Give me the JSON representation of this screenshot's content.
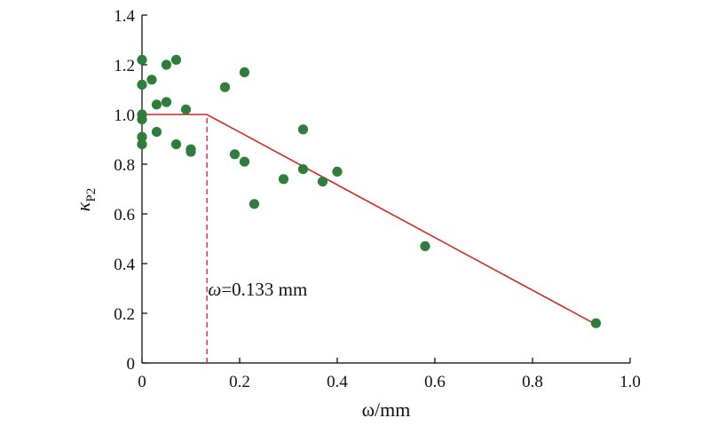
{
  "chart_data": {
    "type": "scatter",
    "title": "",
    "xlabel": "ω/mm",
    "ylabel_symbol": "κ",
    "ylabel_subscript": "P2",
    "xlim": [
      0,
      1.0
    ],
    "ylim": [
      0,
      1.4
    ],
    "x_ticks": [
      "0",
      "0.2",
      "0.4",
      "0.6",
      "0.8",
      "1.0"
    ],
    "y_ticks": [
      "0",
      "0.2",
      "0.4",
      "0.6",
      "0.8",
      "1.0",
      "1.2",
      "1.4"
    ],
    "x_tick_values": [
      0,
      0.2,
      0.4,
      0.6,
      0.8,
      1.0
    ],
    "y_tick_values": [
      0,
      0.2,
      0.4,
      0.6,
      0.8,
      1.0,
      1.2,
      1.4
    ],
    "grid": false,
    "series": [
      {
        "type": "scatter",
        "color": "#2e7d3a",
        "points": [
          [
            0,
            1.22
          ],
          [
            0,
            1.12
          ],
          [
            0,
            1.0
          ],
          [
            0,
            0.98
          ],
          [
            0,
            0.91
          ],
          [
            0,
            0.88
          ],
          [
            0.02,
            1.14
          ],
          [
            0.03,
            1.04
          ],
          [
            0.03,
            0.93
          ],
          [
            0.05,
            1.2
          ],
          [
            0.05,
            1.05
          ],
          [
            0.07,
            1.22
          ],
          [
            0.07,
            0.88
          ],
          [
            0.09,
            1.02
          ],
          [
            0.1,
            0.86
          ],
          [
            0.1,
            0.85
          ],
          [
            0.17,
            1.11
          ],
          [
            0.19,
            0.84
          ],
          [
            0.21,
            1.17
          ],
          [
            0.21,
            0.81
          ],
          [
            0.23,
            0.64
          ],
          [
            0.29,
            0.74
          ],
          [
            0.33,
            0.94
          ],
          [
            0.33,
            0.78
          ],
          [
            0.37,
            0.73
          ],
          [
            0.4,
            0.77
          ],
          [
            0.58,
            0.47
          ],
          [
            0.93,
            0.16
          ]
        ]
      },
      {
        "type": "line",
        "color": "#d62728",
        "points": [
          [
            0,
            1.0
          ],
          [
            0.133,
            1.0
          ],
          [
            0.93,
            0.155
          ]
        ]
      }
    ],
    "vline": {
      "x": 0.133,
      "y_from": 0,
      "y_to": 1.0,
      "color": "#d62728",
      "style": "dashed"
    },
    "annotation": {
      "prefix": "ω",
      "text": "=0.133 mm",
      "x": 0.15,
      "y": 0.29
    }
  }
}
